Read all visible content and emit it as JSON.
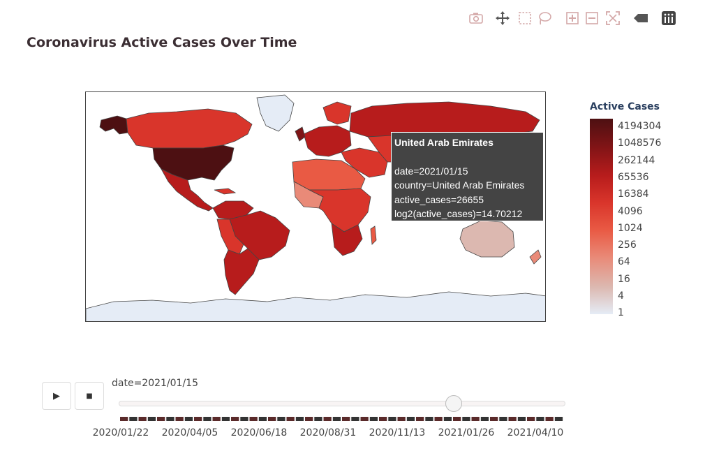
{
  "toolbar": {
    "icons": [
      "camera-icon",
      "pan-icon",
      "box-select-icon",
      "lasso-select-icon",
      "zoom-in-icon",
      "zoom-out-icon",
      "reset-axes-icon",
      "hover-toggle-icon",
      "plotly-logo-icon"
    ]
  },
  "chart": {
    "title": "Coronavirus Active Cases Over Time",
    "colorbar_title": "Active Cases",
    "colorbar_ticks": [
      "4194304",
      "1048576",
      "262144",
      "65536",
      "16384",
      "4096",
      "1024",
      "256",
      "64",
      "16",
      "4",
      "1"
    ],
    "colors": {
      "colorscale": [
        "#e5ecf6",
        "#dcb8b0",
        "#e98a78",
        "#e95a44",
        "#d9352b",
        "#b71c1c",
        "#7f1416",
        "#4d1012"
      ],
      "ocean": "#ffffff",
      "frame": "#444444"
    }
  },
  "chart_data": {
    "type": "choropleth",
    "title": "Coronavirus Active Cases Over Time",
    "color_variable": "log2(active_cases)",
    "colorbar_title": "Active Cases",
    "colorbar_tick_values": [
      4194304,
      1048576,
      262144,
      65536,
      16384,
      4096,
      1024,
      256,
      64,
      16,
      4,
      1
    ],
    "frame_date": "2021/01/15",
    "hovered": {
      "country": "United Arab Emirates",
      "date": "2021/01/15",
      "active_cases": 26655,
      "log2_active_cases": 14.70212
    }
  },
  "tooltip": {
    "title": "United Arab Emirates",
    "line_date": "date=2021/01/15",
    "line_country": "country=United Arab Emirates",
    "line_cases": "active_cases=26655",
    "line_log": "log2(active_cases)=14.70212"
  },
  "animation": {
    "play_label": "▶",
    "stop_label": "■",
    "current_label": "date=2021/01/15",
    "position_fraction": 0.75,
    "tick_labels": [
      "2020/01/22",
      "2020/04/05",
      "2020/06/18",
      "2020/08/31",
      "2020/11/13",
      "2021/01/26",
      "2021/04/10"
    ]
  }
}
